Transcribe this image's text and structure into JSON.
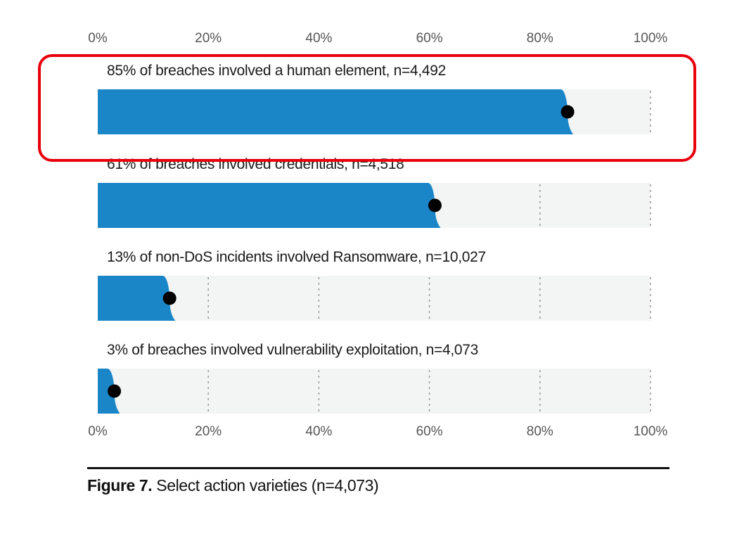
{
  "chart_data": {
    "type": "bar",
    "orientation": "horizontal",
    "xlim": [
      0,
      100
    ],
    "ticks": [
      "0%",
      "20%",
      "40%",
      "60%",
      "80%",
      "100%"
    ],
    "tick_values": [
      0,
      20,
      40,
      60,
      80,
      100
    ],
    "grid": true,
    "highlighted_row": 0,
    "rows": [
      {
        "label": "85% of breaches involved a human element, n=4,492",
        "value": 85
      },
      {
        "label": "61% of breaches involved credentials, n=4,518",
        "value": 61
      },
      {
        "label": "13% of non-DoS incidents involved Ransomware, n=10,027",
        "value": 13
      },
      {
        "label": "3% of breaches involved vulnerability exploitation, n=4,073",
        "value": 3
      }
    ],
    "colors": {
      "bar": "#1a86c8",
      "track": "#f3f4f4",
      "dot": "#000000",
      "highlight": "#e8000b",
      "grid": "#9a9a9a"
    }
  },
  "caption": {
    "bold": "Figure 7.",
    "text": " Select action varieties (n=4,073)"
  }
}
